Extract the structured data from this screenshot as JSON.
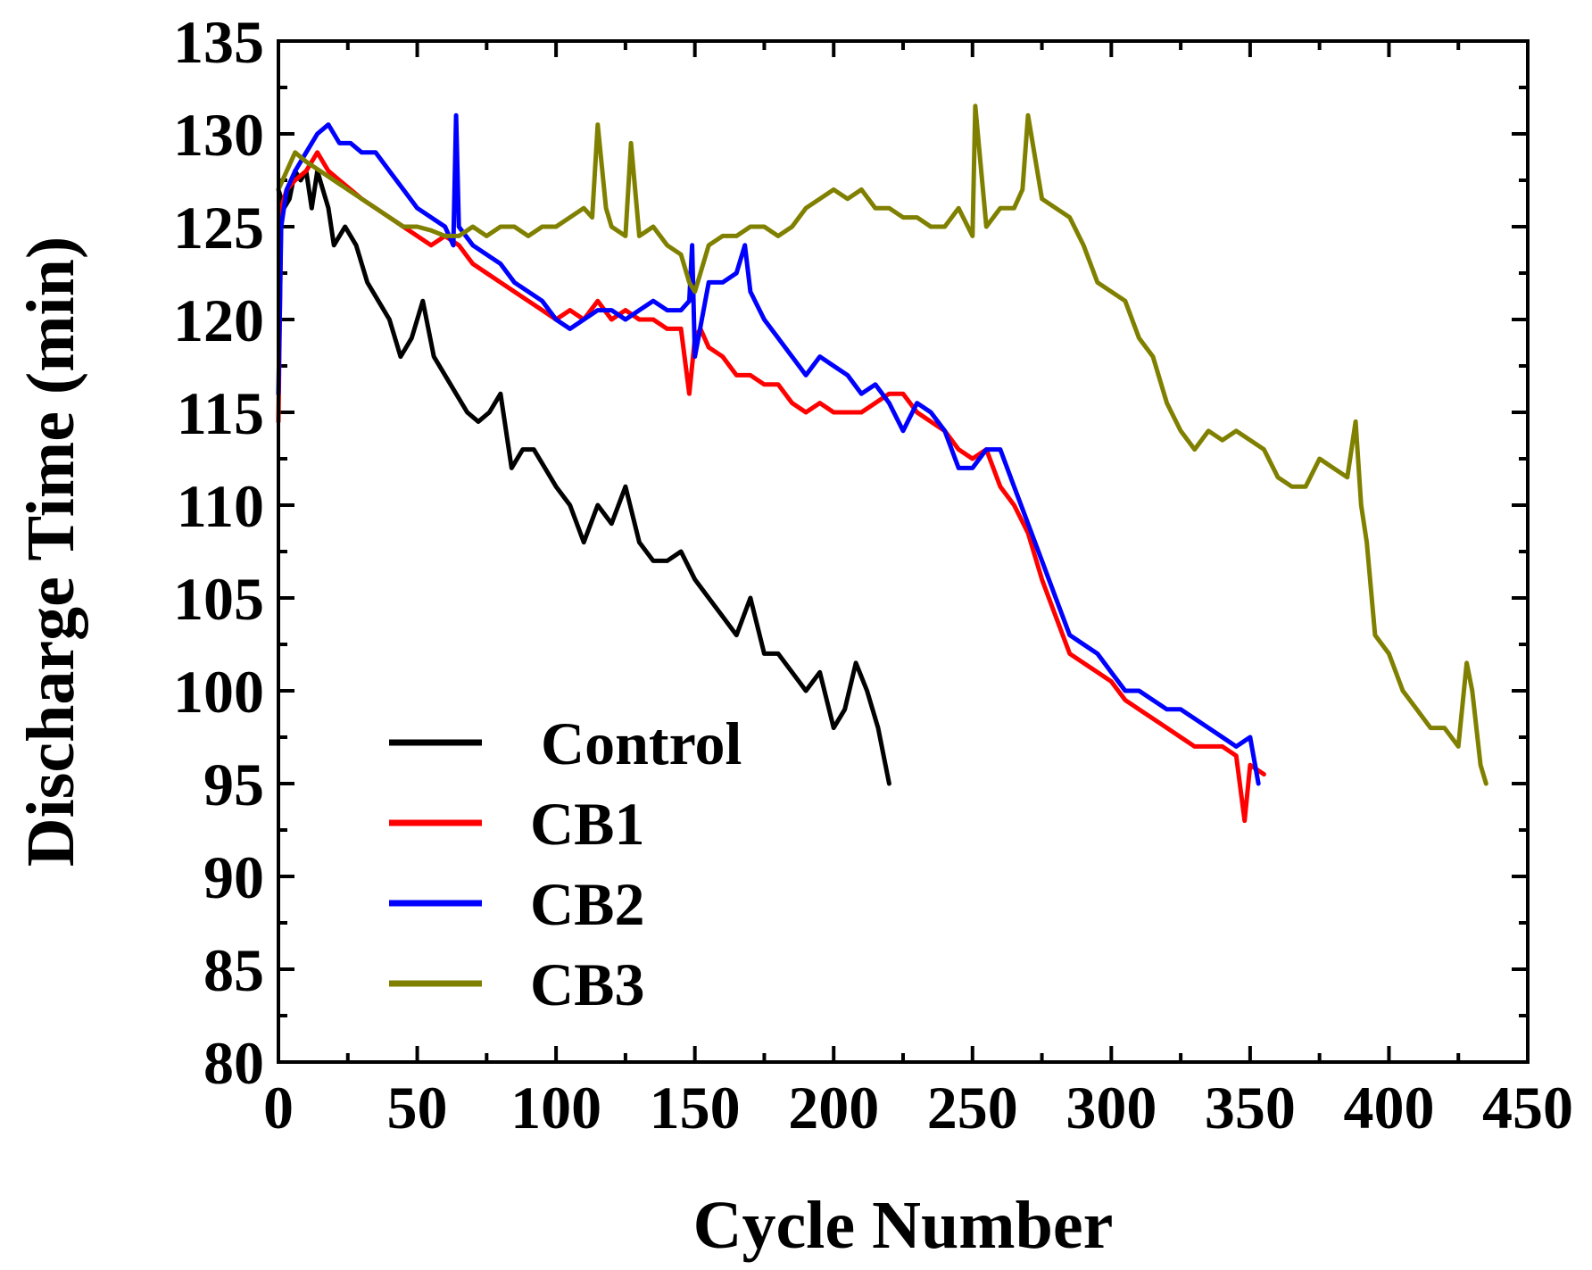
{
  "chart_data": {
    "type": "line",
    "title": "",
    "xlabel": "Cycle Number",
    "ylabel": "Discharge Time (min)",
    "xlim": [
      0,
      450
    ],
    "ylim": [
      80,
      135
    ],
    "x_ticks": [
      "0",
      "50",
      "100",
      "150",
      "200",
      "250",
      "300",
      "350",
      "400",
      "450"
    ],
    "y_ticks": [
      "80",
      "85",
      "90",
      "95",
      "100",
      "105",
      "110",
      "115",
      "120",
      "125",
      "130",
      "135"
    ],
    "x_tick_values": [
      0,
      50,
      100,
      150,
      200,
      250,
      300,
      350,
      400,
      450
    ],
    "y_tick_values": [
      80,
      85,
      90,
      95,
      100,
      105,
      110,
      115,
      120,
      125,
      130,
      135
    ],
    "grid": false,
    "legend_position": "bottom-left",
    "series": [
      {
        "name": "Control",
        "color": "#000000",
        "x": [
          0,
          2,
          4,
          6,
          8,
          10,
          12,
          14,
          16,
          18,
          20,
          24,
          28,
          32,
          36,
          40,
          44,
          48,
          52,
          56,
          60,
          64,
          68,
          72,
          76,
          80,
          84,
          88,
          92,
          96,
          100,
          105,
          110,
          115,
          120,
          125,
          130,
          135,
          140,
          145,
          150,
          155,
          160,
          165,
          170,
          175,
          180,
          185,
          190,
          195,
          200,
          204,
          208,
          212,
          216,
          220
        ],
        "y": [
          127,
          126,
          126.5,
          128,
          127.5,
          128,
          126,
          128,
          127,
          126,
          124,
          125,
          124,
          122,
          121,
          120,
          118,
          119,
          121,
          118,
          117,
          116,
          115,
          114.5,
          115,
          116,
          112,
          113,
          113,
          112,
          111,
          110,
          108,
          110,
          109,
          111,
          108,
          107,
          107,
          107.5,
          106,
          105,
          104,
          103,
          105,
          102,
          102,
          101,
          100,
          101,
          98,
          99,
          101.5,
          100,
          98,
          95
        ]
      },
      {
        "name": "CB1",
        "color": "#ff0000",
        "x": [
          0,
          1,
          3,
          6,
          10,
          14,
          18,
          22,
          26,
          30,
          35,
          40,
          45,
          50,
          55,
          60,
          65,
          70,
          75,
          80,
          85,
          90,
          95,
          100,
          105,
          110,
          115,
          120,
          125,
          130,
          135,
          140,
          145,
          148,
          150,
          152,
          155,
          160,
          165,
          170,
          175,
          180,
          185,
          190,
          195,
          200,
          205,
          210,
          215,
          220,
          225,
          230,
          235,
          240,
          245,
          250,
          255,
          260,
          265,
          270,
          275,
          280,
          285,
          290,
          295,
          300,
          305,
          310,
          315,
          320,
          325,
          330,
          335,
          340,
          345,
          348,
          350,
          355
        ],
        "y": [
          114.5,
          126,
          127,
          127.5,
          128,
          129,
          128,
          127.5,
          127,
          126.5,
          126,
          125.5,
          125,
          124.5,
          124,
          124.5,
          124,
          123,
          122.5,
          122,
          121.5,
          121,
          120.5,
          120,
          120.5,
          120,
          121,
          120,
          120.5,
          120,
          120,
          119.5,
          119.5,
          116,
          119,
          119.5,
          118.5,
          118,
          117,
          117,
          116.5,
          116.5,
          115.5,
          115,
          115.5,
          115,
          115,
          115,
          115.5,
          116,
          116,
          115,
          114.5,
          114,
          113,
          112.5,
          113,
          111,
          110,
          108.5,
          106,
          104,
          102,
          101.5,
          101,
          100.5,
          99.5,
          99,
          98.5,
          98,
          97.5,
          97,
          97,
          97,
          96.5,
          93,
          96,
          95.5
        ]
      },
      {
        "name": "CB2",
        "color": "#0000ff",
        "x": [
          0,
          1,
          3,
          6,
          10,
          14,
          18,
          22,
          26,
          30,
          35,
          40,
          45,
          50,
          55,
          60,
          63,
          64,
          65,
          70,
          75,
          80,
          85,
          90,
          95,
          100,
          105,
          110,
          115,
          120,
          125,
          130,
          135,
          140,
          145,
          148,
          149,
          150,
          155,
          160,
          165,
          168,
          170,
          175,
          180,
          185,
          190,
          195,
          200,
          205,
          210,
          215,
          220,
          225,
          230,
          235,
          240,
          245,
          250,
          255,
          260,
          265,
          270,
          275,
          280,
          285,
          290,
          295,
          300,
          305,
          310,
          315,
          320,
          325,
          330,
          335,
          340,
          345,
          350,
          353
        ],
        "y": [
          116,
          125,
          127,
          128,
          129,
          130,
          130.5,
          129.5,
          129.5,
          129,
          129,
          128,
          127,
          126,
          125.5,
          125,
          124,
          131,
          125,
          124,
          123.5,
          123,
          122,
          121.5,
          121,
          120,
          119.5,
          120,
          120.5,
          120.5,
          120,
          120.5,
          121,
          120.5,
          120.5,
          121,
          124,
          118,
          122,
          122,
          122.5,
          124,
          121.5,
          120,
          119,
          118,
          117,
          118,
          117.5,
          117,
          116,
          116.5,
          115.5,
          114,
          115.5,
          115,
          114,
          112,
          112,
          113,
          113,
          111,
          109,
          107,
          105,
          103,
          102.5,
          102,
          101,
          100,
          100,
          99.5,
          99,
          99,
          98.5,
          98,
          97.5,
          97,
          97.5,
          95
        ]
      },
      {
        "name": "CB3",
        "color": "#808000",
        "x": [
          0,
          3,
          6,
          10,
          15,
          20,
          25,
          30,
          35,
          40,
          45,
          50,
          55,
          60,
          65,
          70,
          75,
          80,
          85,
          90,
          95,
          100,
          105,
          110,
          113,
          115,
          118,
          120,
          125,
          127,
          130,
          135,
          140,
          145,
          148,
          150,
          155,
          160,
          165,
          170,
          175,
          180,
          185,
          190,
          195,
          200,
          205,
          210,
          215,
          220,
          225,
          230,
          235,
          240,
          245,
          250,
          251,
          255,
          260,
          265,
          268,
          270,
          275,
          280,
          285,
          290,
          295,
          300,
          305,
          310,
          315,
          320,
          325,
          330,
          335,
          340,
          345,
          350,
          355,
          360,
          365,
          370,
          375,
          380,
          385,
          388,
          390,
          392,
          395,
          400,
          405,
          410,
          415,
          420,
          425,
          428,
          430,
          433,
          435
        ],
        "y": [
          127,
          128,
          129,
          128.5,
          128,
          127.5,
          127,
          126.5,
          126,
          125.5,
          125,
          125,
          124.8,
          124.5,
          124.5,
          125,
          124.5,
          125,
          125,
          124.5,
          125,
          125,
          125.5,
          126,
          125.5,
          130.5,
          126,
          125,
          124.5,
          129.5,
          124.5,
          125,
          124,
          123.5,
          122,
          121.5,
          124,
          124.5,
          124.5,
          125,
          125,
          124.5,
          125,
          126,
          126.5,
          127,
          126.5,
          127,
          126,
          126,
          125.5,
          125.5,
          125,
          125,
          126,
          124.5,
          131.5,
          125,
          126,
          126,
          127,
          131,
          126.5,
          126,
          125.5,
          124,
          122,
          121.5,
          121,
          119,
          118,
          115.5,
          114,
          113,
          114,
          113.5,
          114,
          113.5,
          113,
          111.5,
          111,
          111,
          112.5,
          112,
          111.5,
          114.5,
          110,
          108,
          103,
          102,
          100,
          99,
          98,
          98,
          97,
          101.5,
          100,
          96,
          95
        ]
      }
    ]
  }
}
